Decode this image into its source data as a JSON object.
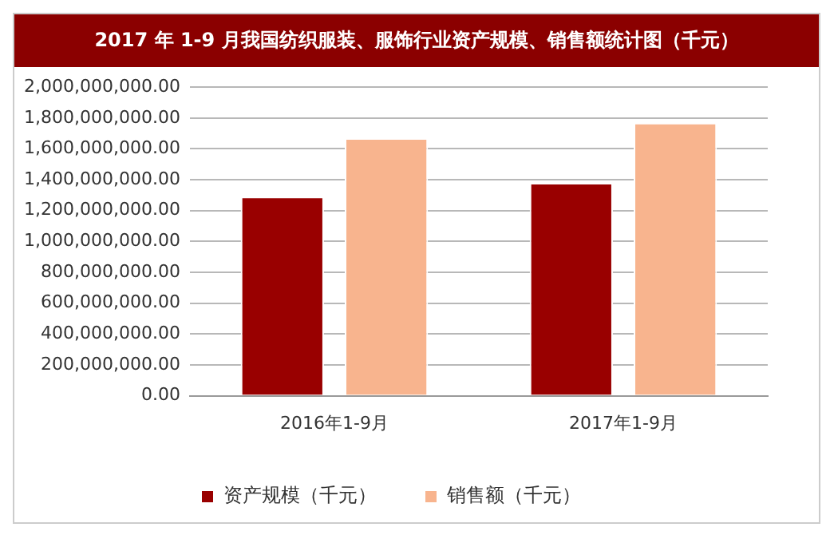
{
  "chart_data": {
    "type": "bar",
    "title": "2017 年 1-9 月我国纺织服装、服饰行业资产规模、销售额统计图（千元）",
    "categories": [
      "2016年1-9月",
      "2017年1-9月"
    ],
    "series": [
      {
        "name": "资产规模（千元）",
        "color": "#990000",
        "values": [
          1290000000,
          1380000000
        ]
      },
      {
        "name": "销售额（千元）",
        "color": "#f8b48e",
        "values": [
          1670000000,
          1770000000
        ]
      }
    ],
    "ylim": [
      0,
      2000000000
    ],
    "yticks": [
      {
        "value": 0,
        "label": "0.00"
      },
      {
        "value": 200000000,
        "label": "200,000,000.00"
      },
      {
        "value": 400000000,
        "label": "400,000,000.00"
      },
      {
        "value": 600000000,
        "label": "600,000,000.00"
      },
      {
        "value": 800000000,
        "label": "800,000,000.00"
      },
      {
        "value": 1000000000,
        "label": "1,000,000,000.00"
      },
      {
        "value": 1200000000,
        "label": "1,200,000,000.00"
      },
      {
        "value": 1400000000,
        "label": "1,400,000,000.00"
      },
      {
        "value": 1600000000,
        "label": "1,600,000,000.00"
      },
      {
        "value": 1800000000,
        "label": "1,800,000,000.00"
      },
      {
        "value": 2000000000,
        "label": "2,000,000,000.00"
      }
    ],
    "grid": "y",
    "legend": "bottom"
  }
}
